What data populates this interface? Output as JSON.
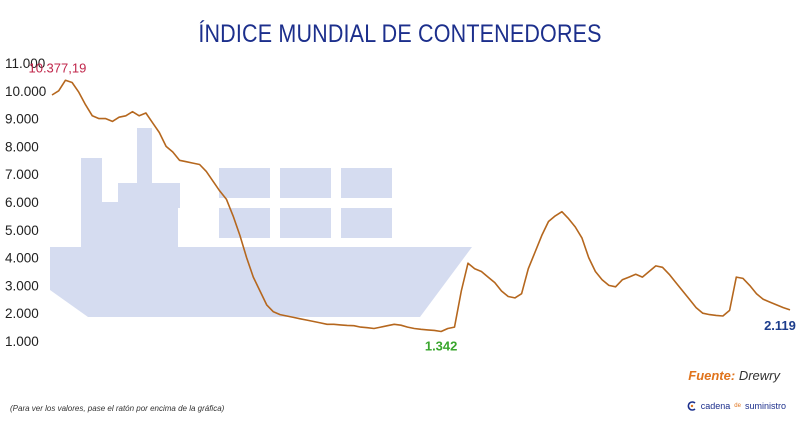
{
  "title": "ÍNDICE MUNDIAL DE CONTENEDORES",
  "source": {
    "label": "Fuente:",
    "name": "Drewry"
  },
  "note": "(Para ver los valores, pase el ratón por encima de la gráfica)",
  "logo": {
    "part1": "cadena",
    "part2": "de",
    "part3": "suministro"
  },
  "colors": {
    "line": "#b5671e",
    "title": "#1c2f8c",
    "ship": "#d5dcf0",
    "max": "#c0254a",
    "min": "#3aa62e",
    "last": "#1c3d8c"
  },
  "chart_data": {
    "type": "line",
    "title": "ÍNDICE MUNDIAL DE CONTENEDORES",
    "xlabel": "",
    "ylabel": "",
    "ylim": [
      500,
      11000
    ],
    "yticks": [
      11000,
      10000,
      9000,
      8000,
      7000,
      6000,
      5000,
      4000,
      3000,
      2000,
      1000
    ],
    "ytick_labels": [
      "11.000",
      "10.000",
      "9.000",
      "8.000",
      "7.000",
      "6.000",
      "5.000",
      "4.000",
      "3.000",
      "2.000",
      "1.000"
    ],
    "grid": false,
    "series": [
      {
        "values": [
          9850,
          10000,
          10377,
          10300,
          9950,
          9500,
          9100,
          9000,
          9000,
          8900,
          9050,
          9100,
          9250,
          9100,
          9200,
          8850,
          8500,
          8000,
          7800,
          7500,
          7450,
          7400,
          7350,
          7100,
          6750,
          6400,
          6100,
          5500,
          4800,
          4000,
          3300,
          2800,
          2300,
          2050,
          1950,
          1900,
          1850,
          1800,
          1750,
          1700,
          1650,
          1600,
          1600,
          1580,
          1560,
          1550,
          1500,
          1480,
          1450,
          1500,
          1550,
          1600,
          1570,
          1500,
          1450,
          1420,
          1400,
          1380,
          1342,
          1450,
          1500,
          2800,
          3800,
          3600,
          3500,
          3300,
          3100,
          2800,
          2600,
          2550,
          2700,
          3600,
          4200,
          4800,
          5300,
          5500,
          5650,
          5400,
          5100,
          4700,
          4000,
          3500,
          3200,
          3000,
          2950,
          3200,
          3300,
          3400,
          3300,
          3500,
          3700,
          3650,
          3400,
          3100,
          2800,
          2500,
          2200,
          2000,
          1950,
          1920,
          1900,
          2100,
          3300,
          3250,
          3000,
          2700,
          2500,
          2400,
          2300,
          2200,
          2119
        ]
      }
    ],
    "annotations": [
      {
        "label": "10.377,19",
        "value": 10377.19,
        "kind": "max"
      },
      {
        "label": "1.342",
        "value": 1342,
        "kind": "min"
      },
      {
        "label": "2.119",
        "value": 2119,
        "kind": "last"
      }
    ]
  }
}
